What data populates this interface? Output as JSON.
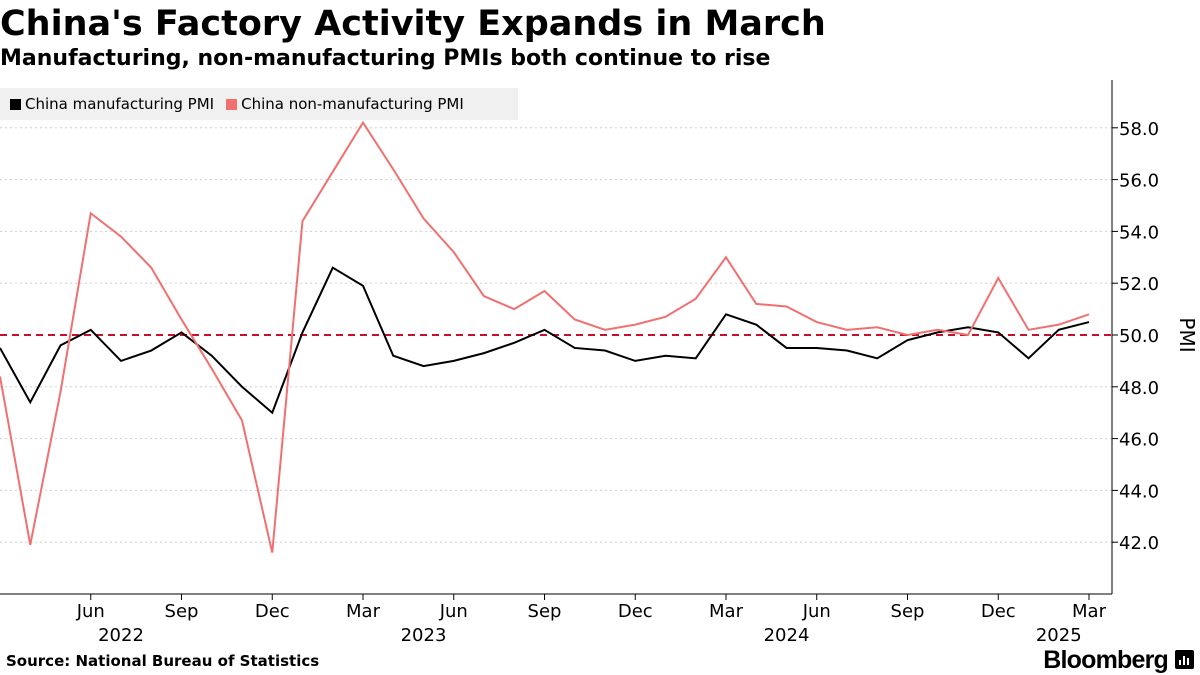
{
  "header": {
    "title": "China's Factory Activity Expands in March",
    "subtitle": "Manufacturing, non-manufacturing PMIs both continue to rise"
  },
  "footer": {
    "source": "Source: National Bureau of Statistics",
    "brand": "Bloomberg",
    "brand_icon": "bar-chart-icon"
  },
  "colors": {
    "manufacturing": "#000000",
    "non_manufacturing": "#f07070",
    "reference_line": "#c8102e",
    "grid": "#d0d0d0",
    "legend_bg": "#f0f0f0"
  },
  "chart_data": {
    "type": "line",
    "title": "China's Factory Activity Expands in March",
    "subtitle": "Manufacturing, non-manufacturing PMIs both continue to rise",
    "ylabel": "PMI",
    "ylim": [
      40.0,
      59.8
    ],
    "yticks": [
      "42.0",
      "44.0",
      "46.0",
      "48.0",
      "50.0",
      "52.0",
      "54.0",
      "56.0",
      "58.0"
    ],
    "y_axis_side": "right",
    "grid": "horizontal dotted",
    "legend_position": "top-left",
    "reference_line": {
      "y": 50.0,
      "style": "dashed"
    },
    "x": [
      "2022-03",
      "2022-04",
      "2022-05",
      "2022-06",
      "2022-07",
      "2022-08",
      "2022-09",
      "2022-10",
      "2022-11",
      "2022-12",
      "2023-01",
      "2023-02",
      "2023-03",
      "2023-04",
      "2023-05",
      "2023-06",
      "2023-07",
      "2023-08",
      "2023-09",
      "2023-10",
      "2023-11",
      "2023-12",
      "2024-01",
      "2024-02",
      "2024-03",
      "2024-04",
      "2024-05",
      "2024-06",
      "2024-07",
      "2024-08",
      "2024-09",
      "2024-10",
      "2024-11",
      "2024-12",
      "2025-01",
      "2025-02",
      "2025-03"
    ],
    "x_tick_labels": [
      {
        "x": "2022-06",
        "label": "Jun"
      },
      {
        "x": "2022-09",
        "label": "Sep"
      },
      {
        "x": "2022-12",
        "label": "Dec"
      },
      {
        "x": "2023-03",
        "label": "Mar"
      },
      {
        "x": "2023-06",
        "label": "Jun"
      },
      {
        "x": "2023-09",
        "label": "Sep"
      },
      {
        "x": "2023-12",
        "label": "Dec"
      },
      {
        "x": "2024-03",
        "label": "Mar"
      },
      {
        "x": "2024-06",
        "label": "Jun"
      },
      {
        "x": "2024-09",
        "label": "Sep"
      },
      {
        "x": "2024-12",
        "label": "Dec"
      },
      {
        "x": "2025-03",
        "label": "Mar"
      }
    ],
    "x_year_labels": [
      {
        "x": "2022-07",
        "label": "2022"
      },
      {
        "x": "2023-05",
        "label": "2023"
      },
      {
        "x": "2024-05",
        "label": "2024"
      },
      {
        "x": "2025-02",
        "label": "2025"
      }
    ],
    "series": [
      {
        "name": "China manufacturing PMI",
        "color_key": "manufacturing",
        "values": [
          49.5,
          47.4,
          49.6,
          50.2,
          49.0,
          49.4,
          50.1,
          49.2,
          48.0,
          47.0,
          50.1,
          52.6,
          51.9,
          49.2,
          48.8,
          49.0,
          49.3,
          49.7,
          50.2,
          49.5,
          49.4,
          49.0,
          49.2,
          49.1,
          50.8,
          50.4,
          49.5,
          49.5,
          49.4,
          49.1,
          49.8,
          50.1,
          50.3,
          50.1,
          49.1,
          50.2,
          50.5
        ]
      },
      {
        "name": "China non-manufacturing PMI",
        "color_key": "non_manufacturing",
        "values": [
          48.4,
          41.9,
          47.8,
          54.7,
          53.8,
          52.6,
          50.6,
          48.7,
          46.7,
          41.6,
          54.4,
          56.3,
          58.2,
          56.4,
          54.5,
          53.2,
          51.5,
          51.0,
          51.7,
          50.6,
          50.2,
          50.4,
          50.7,
          51.4,
          53.0,
          51.2,
          51.1,
          50.5,
          50.2,
          50.3,
          50.0,
          50.2,
          50.0,
          52.2,
          50.2,
          50.4,
          50.8
        ]
      }
    ]
  }
}
